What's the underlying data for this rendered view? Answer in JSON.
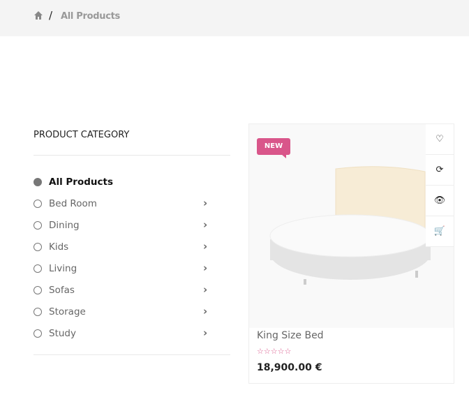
{
  "breadcrumb": {
    "home_icon": "home-icon",
    "separator": "/",
    "current": "All Products"
  },
  "sidebar": {
    "title": "PRODUCT CATEGORY",
    "items": [
      {
        "label": "All Products",
        "active": true
      },
      {
        "label": "Bed Room"
      },
      {
        "label": "Dining"
      },
      {
        "label": "Kids"
      },
      {
        "label": "Living"
      },
      {
        "label": "Sofas"
      },
      {
        "label": "Storage"
      },
      {
        "label": "Study"
      }
    ]
  },
  "product": {
    "badge": "NEW",
    "name": "King Size Bed",
    "rating": 0,
    "max_rating": 5,
    "stars": "☆☆☆☆☆",
    "price": "18,900.00 €",
    "actions": [
      "heart-icon",
      "refresh-icon",
      "eye-icon",
      "cart-icon"
    ],
    "action_glyphs": [
      "♡",
      "⟳",
      "👁",
      "🛒"
    ]
  },
  "colors": {
    "accent": "#d9568a"
  }
}
